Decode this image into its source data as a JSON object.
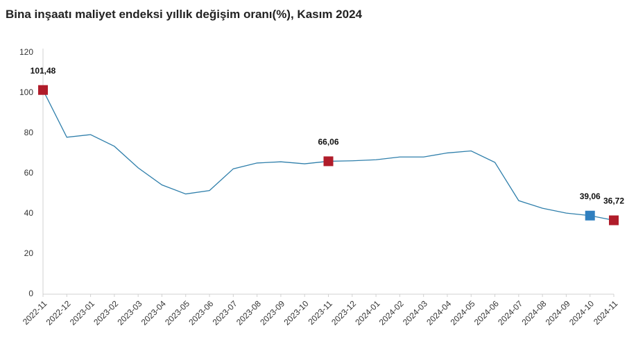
{
  "chart_data": {
    "type": "line",
    "title": "Bina inşaatı maliyet endeksi yıllık değişim oranı(%), Kasım 2024",
    "categories": [
      "2022-11",
      "2022-12",
      "2023-01",
      "2023-02",
      "2023-03",
      "2023-04",
      "2023-05",
      "2023-06",
      "2023-07",
      "2023-08",
      "2023-09",
      "2023-10",
      "2023-11",
      "2023-12",
      "2024-01",
      "2024-02",
      "2024-03",
      "2024-04",
      "2024-05",
      "2024-06",
      "2024-07",
      "2024-08",
      "2024-09",
      "2024-10",
      "2024-11"
    ],
    "series": [
      {
        "color": "#2f7fab",
        "values": [
          101.48,
          78,
          79.3,
          73.5,
          62.8,
          54.3,
          49.8,
          51.5,
          62.3,
          65.2,
          65.8,
          64.8,
          66.06,
          66.3,
          66.8,
          68.2,
          68.2,
          70.2,
          71.2,
          65.5,
          46.5,
          42.7,
          40.3,
          39.06,
          36.72
        ],
        "value_labels": [
          "101,48",
          null,
          null,
          null,
          null,
          null,
          null,
          null,
          null,
          null,
          null,
          null,
          "66,06",
          null,
          null,
          null,
          null,
          null,
          null,
          null,
          null,
          null,
          null,
          "39,06",
          "36,72"
        ],
        "marker_colors": [
          "#b01c2a",
          null,
          null,
          null,
          null,
          null,
          null,
          null,
          null,
          null,
          null,
          null,
          "#b01c2a",
          null,
          null,
          null,
          null,
          null,
          null,
          null,
          null,
          null,
          null,
          "#2f7fbf",
          "#b01c2a"
        ]
      }
    ],
    "ylim": [
      0,
      120
    ],
    "yticks": [
      0,
      20,
      40,
      60,
      80,
      100,
      120
    ],
    "grid": false
  }
}
